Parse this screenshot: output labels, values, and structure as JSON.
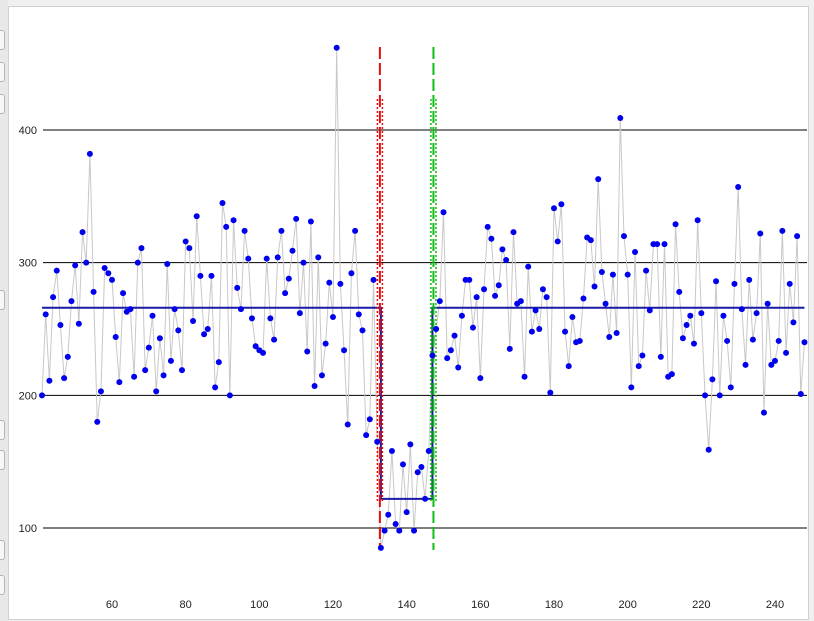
{
  "chart_data": {
    "type": "scatter",
    "title": "",
    "xlabel": "",
    "ylabel": "",
    "xlim": [
      41,
      248
    ],
    "ylim": [
      48,
      475
    ],
    "x_ticks": [
      "60",
      "80",
      "100",
      "120",
      "140",
      "160",
      "180",
      "200",
      "220",
      "240"
    ],
    "y_ticks": [
      "100",
      "200",
      "300",
      "400"
    ],
    "x_start": 41,
    "values": [
      200,
      261,
      211,
      274,
      294,
      253,
      213,
      229,
      271,
      298,
      254,
      323,
      300,
      382,
      278,
      180,
      203,
      296,
      292,
      287,
      244,
      210,
      277,
      263,
      265,
      214,
      300,
      311,
      219,
      236,
      260,
      203,
      243,
      215,
      299,
      226,
      265,
      249,
      219,
      316,
      311,
      256,
      335,
      290,
      246,
      250,
      290,
      206,
      225,
      345,
      327,
      200,
      332,
      281,
      265,
      324,
      303,
      258,
      237,
      234,
      232,
      303,
      258,
      242,
      304,
      324,
      277,
      288,
      309,
      333,
      262,
      300,
      233,
      331,
      207,
      304,
      215,
      239,
      285,
      259,
      462,
      284,
      234,
      178,
      292,
      324,
      261,
      249,
      170,
      182,
      287,
      165,
      85,
      98,
      110,
      158,
      103,
      98,
      148,
      112,
      163,
      98,
      142,
      146,
      122,
      158,
      230,
      250,
      271,
      338,
      228,
      234,
      245,
      221,
      260,
      287,
      287,
      251,
      274,
      213,
      280,
      327,
      318,
      275,
      283,
      310,
      302,
      235,
      323,
      269,
      271,
      214,
      297,
      248,
      264,
      250,
      280,
      274,
      202,
      341,
      316,
      344,
      248,
      222,
      259,
      240,
      241,
      273,
      319,
      317,
      282,
      363,
      293,
      269,
      244,
      291,
      247,
      409,
      320,
      291,
      206,
      308,
      222,
      230,
      294,
      264,
      314,
      314,
      229,
      314,
      214,
      216,
      329,
      278,
      243,
      253,
      260,
      239,
      332,
      262,
      200,
      159,
      212,
      286,
      200,
      260,
      241,
      206,
      284,
      357,
      265,
      223,
      287,
      242,
      262,
      322,
      187,
      269,
      223,
      226,
      241,
      324,
      232,
      284,
      255,
      320,
      201,
      240
    ],
    "segments": [
      {
        "x_start": 41,
        "x_end": 133,
        "mean": 266
      },
      {
        "x_start": 133,
        "x_end": 147,
        "mean": 122
      },
      {
        "x_start": 147,
        "x_end": 248,
        "mean": 266
      }
    ],
    "change_points": [
      {
        "x": 133,
        "color": "#e01010"
      },
      {
        "x": 147,
        "color": "#10c010"
      }
    ],
    "colors": {
      "points": "#0000ee",
      "connector": "#c8c8c8",
      "mean_line": "#1a1aa8",
      "gridline": "#000000"
    }
  }
}
